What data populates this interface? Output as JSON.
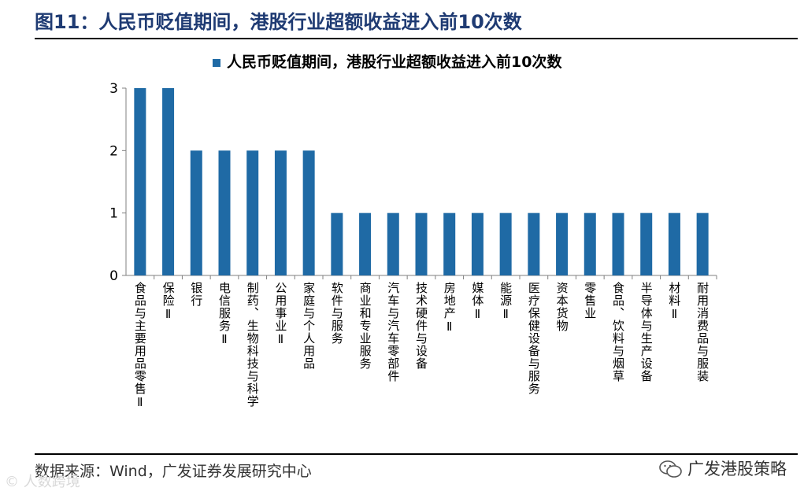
{
  "figure": {
    "title": "图11：人民币贬值期间，港股行业超额收益进入前10次数",
    "source": "数据来源：Wind，广发证券发展研究中心",
    "brand": "广发港股策略",
    "watermark": "© 人数跨境"
  },
  "colors": {
    "bar": "#1f6aa5",
    "axis": "#808080",
    "title": "#1f3b73"
  },
  "chart_data": {
    "type": "bar",
    "title": "",
    "xlabel": "",
    "ylabel": "",
    "legend": "top-center",
    "grid": false,
    "ylim": [
      0,
      3
    ],
    "yticks": [
      0,
      1,
      2,
      3
    ],
    "series": [
      {
        "name": "人民币贬值期间，港股行业超额收益进入前10次数",
        "values": [
          3,
          3,
          2,
          2,
          2,
          2,
          2,
          1,
          1,
          1,
          1,
          1,
          1,
          1,
          1,
          1,
          1,
          1,
          1,
          1,
          1
        ]
      }
    ],
    "categories": [
      "食品与主要用品零售Ⅱ",
      "保险Ⅱ",
      "银行",
      "电信服务Ⅱ",
      "制药、生物科技与科学",
      "公用事业Ⅱ",
      "家庭与个人用品",
      "软件与服务",
      "商业和专业服务",
      "汽车与汽车零部件",
      "技术硬件与设备",
      "房地产Ⅱ",
      "媒体Ⅱ",
      "能源Ⅱ",
      "医疗保健设备与服务",
      "资本货物",
      "零售业",
      "食品、饮料与烟草",
      "半导体与生产设备",
      "材料Ⅱ",
      "耐用消费品与服装"
    ]
  }
}
